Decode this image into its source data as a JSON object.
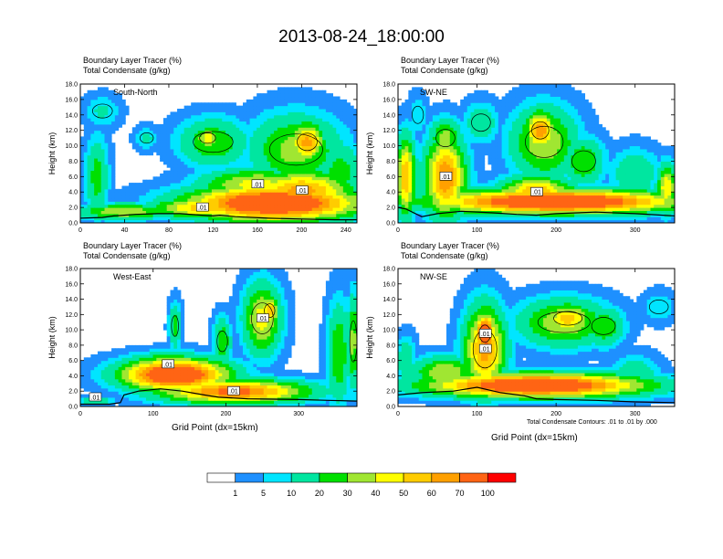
{
  "title": "2013-08-24_18:00:00",
  "colors": {
    "levels": [
      "#ffffff",
      "#1e90ff",
      "#00e5ff",
      "#00e6a0",
      "#00e000",
      "#a0e632",
      "#ffff00",
      "#ffcc00",
      "#ffa000",
      "#ff6414",
      "#ff0000"
    ]
  },
  "colorbar": {
    "labels": [
      "1",
      "5",
      "10",
      "20",
      "30",
      "40",
      "50",
      "60",
      "70",
      "100"
    ]
  },
  "xlabel": "Grid Point (dx=15km)",
  "contour_note": "Total Condensate Contours: .01 to .01 by .000",
  "chart_data": [
    {
      "type": "heatmap",
      "title_line1": "Boundary Layer Tracer   (%)",
      "title_line2": "Total Condensate   (g/kg)",
      "inset": "South-North",
      "ylabel": "Height (km)",
      "xlabel": "",
      "xlim": [
        0,
        250
      ],
      "ylim": [
        0,
        18
      ],
      "xticks": [
        0,
        40,
        80,
        120,
        160,
        200,
        240
      ],
      "yticks": [
        "0.0",
        "2.0",
        "4.0",
        "6.0",
        "8.0",
        "10.0",
        "12.0",
        "14.0",
        "16.0",
        "18.0"
      ],
      "contour_labels": [
        ".01",
        ".01",
        ".01"
      ],
      "terrain": [
        [
          0,
          0.6
        ],
        [
          20,
          0.7
        ],
        [
          30,
          0.9
        ],
        [
          50,
          1.1
        ],
        [
          70,
          1.2
        ],
        [
          90,
          1.2
        ],
        [
          110,
          1.0
        ],
        [
          120,
          0.9
        ],
        [
          126,
          1.0
        ],
        [
          140,
          0.8
        ],
        [
          170,
          0.6
        ],
        [
          200,
          0.5
        ],
        [
          230,
          0.4
        ],
        [
          250,
          0.4
        ]
      ],
      "blobs": [
        {
          "x": 175,
          "y": 2.6,
          "rx": 75,
          "ry": 2.2,
          "v": 100
        },
        {
          "x": 200,
          "y": 4.2,
          "rx": 45,
          "ry": 2.5,
          "v": 65
        },
        {
          "x": 160,
          "y": 5.0,
          "rx": 50,
          "ry": 2.0,
          "v": 45
        },
        {
          "x": 110,
          "y": 2.0,
          "rx": 45,
          "ry": 1.3,
          "v": 55
        },
        {
          "x": 40,
          "y": 1.5,
          "rx": 40,
          "ry": 1.0,
          "v": 40
        },
        {
          "x": 195,
          "y": 9.5,
          "rx": 40,
          "ry": 4.5,
          "v": 35
        },
        {
          "x": 205,
          "y": 10.5,
          "rx": 15,
          "ry": 2.5,
          "v": 65
        },
        {
          "x": 120,
          "y": 10.5,
          "rx": 30,
          "ry": 3.0,
          "v": 30
        },
        {
          "x": 115,
          "y": 11.0,
          "rx": 12,
          "ry": 1.5,
          "v": 45
        },
        {
          "x": 20,
          "y": 14.5,
          "rx": 15,
          "ry": 2.0,
          "v": 12
        },
        {
          "x": 15,
          "y": 6.0,
          "rx": 10,
          "ry": 5.0,
          "v": 25
        },
        {
          "x": 60,
          "y": 11.0,
          "rx": 10,
          "ry": 1.5,
          "v": 12
        },
        {
          "x": 235,
          "y": 6.5,
          "rx": 20,
          "ry": 4.0,
          "v": 25
        }
      ]
    },
    {
      "type": "heatmap",
      "title_line1": "Boundary Layer Tracer   (%)",
      "title_line2": "Total Condensate   (g/kg)",
      "inset": "SW-NE",
      "ylabel": "Height (km)",
      "xlabel": "",
      "xlim": [
        0,
        350
      ],
      "ylim": [
        0,
        18
      ],
      "xticks": [
        0,
        100,
        200,
        300
      ],
      "yticks": [
        "0.0",
        "2.0",
        "4.0",
        "6.0",
        "8.0",
        "10.0",
        "12.0",
        "14.0",
        "16.0",
        "18.0"
      ],
      "contour_labels": [
        ".01",
        ".01"
      ],
      "terrain": [
        [
          0,
          2.0
        ],
        [
          10,
          1.8
        ],
        [
          20,
          1.3
        ],
        [
          30,
          0.8
        ],
        [
          50,
          1.2
        ],
        [
          80,
          1.5
        ],
        [
          120,
          1.3
        ],
        [
          150,
          1.1
        ],
        [
          175,
          1.0
        ],
        [
          200,
          1.2
        ],
        [
          250,
          1.4
        ],
        [
          300,
          1.2
        ],
        [
          350,
          0.9
        ]
      ],
      "blobs": [
        {
          "x": 200,
          "y": 2.8,
          "rx": 150,
          "ry": 1.5,
          "v": 100
        },
        {
          "x": 175,
          "y": 4.0,
          "rx": 45,
          "ry": 2.0,
          "v": 60
        },
        {
          "x": 60,
          "y": 6.0,
          "rx": 25,
          "ry": 5.0,
          "v": 70
        },
        {
          "x": 60,
          "y": 11.0,
          "rx": 20,
          "ry": 2.5,
          "v": 35
        },
        {
          "x": 10,
          "y": 6.0,
          "rx": 12,
          "ry": 5.0,
          "v": 60
        },
        {
          "x": 185,
          "y": 10.5,
          "rx": 40,
          "ry": 4.5,
          "v": 40
        },
        {
          "x": 180,
          "y": 12.0,
          "rx": 18,
          "ry": 2.5,
          "v": 70
        },
        {
          "x": 105,
          "y": 13.0,
          "rx": 20,
          "ry": 2.5,
          "v": 20
        },
        {
          "x": 235,
          "y": 8.0,
          "rx": 25,
          "ry": 3.0,
          "v": 30
        },
        {
          "x": 300,
          "y": 6.5,
          "rx": 30,
          "ry": 3.0,
          "v": 20
        },
        {
          "x": 340,
          "y": 4.5,
          "rx": 12,
          "ry": 3.0,
          "v": 50
        },
        {
          "x": 25,
          "y": 14.0,
          "rx": 12,
          "ry": 2.5,
          "v": 10
        }
      ]
    },
    {
      "type": "heatmap",
      "title_line1": "Boundary Layer Tracer   (%)",
      "title_line2": "Total Condensate   (g/kg)",
      "inset": "West-East",
      "ylabel": "Height (km)",
      "xlabel": "Grid Point (dx=15km)",
      "xlim": [
        0,
        380
      ],
      "ylim": [
        0,
        18
      ],
      "xticks": [
        0,
        100,
        200,
        300
      ],
      "yticks": [
        "0.0",
        "2.0",
        "4.0",
        "6.0",
        "8.0",
        "10.0",
        "12.0",
        "14.0",
        "16.0",
        "18.0"
      ],
      "contour_labels": [
        ".01",
        ".01",
        ".01",
        ".01"
      ],
      "terrain": [
        [
          0,
          0.3
        ],
        [
          40,
          0.3
        ],
        [
          55,
          0.5
        ],
        [
          60,
          1.5
        ],
        [
          80,
          2.0
        ],
        [
          110,
          2.3
        ],
        [
          140,
          2.0
        ],
        [
          170,
          1.5
        ],
        [
          190,
          1.2
        ],
        [
          230,
          1.0
        ],
        [
          300,
          0.9
        ],
        [
          340,
          0.8
        ],
        [
          380,
          0.7
        ]
      ],
      "blobs": [
        {
          "x": 130,
          "y": 4.2,
          "rx": 70,
          "ry": 2.0,
          "v": 100
        },
        {
          "x": 210,
          "y": 2.0,
          "rx": 100,
          "ry": 1.5,
          "v": 75
        },
        {
          "x": 120,
          "y": 5.5,
          "rx": 35,
          "ry": 1.5,
          "v": 50
        },
        {
          "x": 20,
          "y": 0.8,
          "rx": 25,
          "ry": 0.5,
          "v": 20
        },
        {
          "x": 250,
          "y": 11.5,
          "rx": 25,
          "ry": 4.5,
          "v": 45
        },
        {
          "x": 260,
          "y": 12.5,
          "rx": 12,
          "ry": 2.0,
          "v": 60
        },
        {
          "x": 195,
          "y": 8.5,
          "rx": 12,
          "ry": 3.0,
          "v": 30
        },
        {
          "x": 130,
          "y": 10.5,
          "rx": 8,
          "ry": 3.0,
          "v": 25
        },
        {
          "x": 355,
          "y": 7.0,
          "rx": 15,
          "ry": 6.5,
          "v": 30
        },
        {
          "x": 375,
          "y": 8.5,
          "rx": 8,
          "ry": 6.0,
          "v": 35
        }
      ]
    },
    {
      "type": "heatmap",
      "title_line1": "Boundary Layer Tracer   (%)",
      "title_line2": "Total Condensate   (g/kg)",
      "inset": "NW-SE",
      "ylabel": "Height (km)",
      "xlabel": "Grid Point (dx=15km)",
      "xlim": [
        0,
        350
      ],
      "ylim": [
        0,
        18
      ],
      "xticks": [
        0,
        100,
        200,
        300
      ],
      "yticks": [
        "0.0",
        "2.0",
        "4.0",
        "6.0",
        "8.0",
        "10.0",
        "12.0",
        "14.0",
        "16.0",
        "18.0"
      ],
      "contour_labels": [
        ".01",
        ".01"
      ],
      "terrain": [
        [
          0,
          1.5
        ],
        [
          30,
          1.8
        ],
        [
          70,
          2.0
        ],
        [
          100,
          2.5
        ],
        [
          130,
          1.8
        ],
        [
          160,
          1.4
        ],
        [
          175,
          1.0
        ],
        [
          200,
          0.9
        ],
        [
          250,
          0.8
        ],
        [
          300,
          0.6
        ],
        [
          350,
          0.5
        ]
      ],
      "blobs": [
        {
          "x": 175,
          "y": 2.8,
          "rx": 130,
          "ry": 1.5,
          "v": 100
        },
        {
          "x": 110,
          "y": 7.5,
          "rx": 25,
          "ry": 5.5,
          "v": 65
        },
        {
          "x": 110,
          "y": 9.5,
          "rx": 12,
          "ry": 2.5,
          "v": 100
        },
        {
          "x": 60,
          "y": 4.5,
          "rx": 40,
          "ry": 2.0,
          "v": 40
        },
        {
          "x": 210,
          "y": 11.0,
          "rx": 55,
          "ry": 3.0,
          "v": 40
        },
        {
          "x": 215,
          "y": 11.5,
          "rx": 30,
          "ry": 2.0,
          "v": 55
        },
        {
          "x": 260,
          "y": 10.5,
          "rx": 25,
          "ry": 2.5,
          "v": 30
        },
        {
          "x": 300,
          "y": 4.0,
          "rx": 30,
          "ry": 2.5,
          "v": 20
        },
        {
          "x": 10,
          "y": 6.0,
          "rx": 12,
          "ry": 3.0,
          "v": 20
        },
        {
          "x": 330,
          "y": 13.0,
          "rx": 20,
          "ry": 2.0,
          "v": 10
        }
      ]
    }
  ]
}
